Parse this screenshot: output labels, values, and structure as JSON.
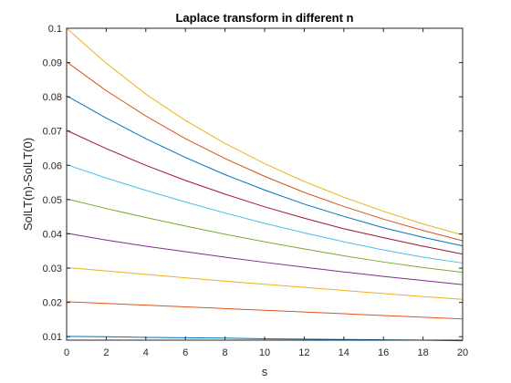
{
  "chart_data": {
    "type": "line",
    "title": "Laplace transform in different n",
    "xlabel": "s",
    "ylabel": "SolLT(n)-SolLT(0)",
    "xlim": [
      0,
      20
    ],
    "ylim": [
      0.009,
      0.1
    ],
    "grid": false,
    "legend": "none",
    "x_ticks": [
      0,
      2,
      4,
      6,
      8,
      10,
      12,
      14,
      16,
      18,
      20
    ],
    "x_tick_labels": [
      "0",
      "2",
      "4",
      "6",
      "8",
      "10",
      "12",
      "14",
      "16",
      "18",
      "20"
    ],
    "y_ticks": [
      0.01,
      0.02,
      0.03,
      0.04,
      0.05,
      0.06,
      0.07,
      0.08,
      0.09,
      0.1
    ],
    "y_tick_labels": [
      "0.01",
      "0.02",
      "0.03",
      "0.04",
      "0.05",
      "0.06",
      "0.07",
      "0.08",
      "0.09",
      "0.1"
    ],
    "x": [
      0,
      2,
      4,
      6,
      8,
      10,
      12,
      14,
      16,
      18,
      20
    ],
    "series": [
      {
        "color": "#0072BD",
        "values": [
          0.0101,
          0.01,
          0.0098,
          0.0097,
          0.0096,
          0.0094,
          0.0093,
          0.0092,
          0.0091,
          0.009,
          0.0088
        ]
      },
      {
        "color": "#D95319",
        "values": [
          0.0202,
          0.0197,
          0.0192,
          0.0187,
          0.0182,
          0.0177,
          0.0172,
          0.0167,
          0.0162,
          0.0157,
          0.0152
        ]
      },
      {
        "color": "#EDB120",
        "values": [
          0.0302,
          0.0292,
          0.0282,
          0.0272,
          0.0262,
          0.0253,
          0.0244,
          0.0235,
          0.0226,
          0.0217,
          0.0209
        ]
      },
      {
        "color": "#7E2F8E",
        "values": [
          0.0402,
          0.0382,
          0.0364,
          0.0348,
          0.0332,
          0.0317,
          0.0303,
          0.0289,
          0.0276,
          0.0264,
          0.0252
        ]
      },
      {
        "color": "#77AC30",
        "values": [
          0.0502,
          0.0474,
          0.0448,
          0.0423,
          0.0399,
          0.0377,
          0.0356,
          0.0336,
          0.0318,
          0.0302,
          0.0288
        ]
      },
      {
        "color": "#4DBEEE",
        "values": [
          0.0602,
          0.0563,
          0.0527,
          0.0493,
          0.0461,
          0.0431,
          0.0403,
          0.0377,
          0.0353,
          0.0332,
          0.0315
        ]
      },
      {
        "color": "#A2142F",
        "values": [
          0.0702,
          0.0649,
          0.06,
          0.0556,
          0.0516,
          0.0479,
          0.0446,
          0.0415,
          0.0389,
          0.0364,
          0.0341
        ]
      },
      {
        "color": "#0072BD",
        "values": [
          0.0803,
          0.0738,
          0.0678,
          0.0623,
          0.0573,
          0.0528,
          0.0487,
          0.0451,
          0.0418,
          0.039,
          0.0365
        ]
      },
      {
        "color": "#D95319",
        "values": [
          0.0902,
          0.0818,
          0.0744,
          0.0678,
          0.062,
          0.0568,
          0.0521,
          0.048,
          0.0443,
          0.041,
          0.038
        ]
      },
      {
        "color": "#EDB120",
        "values": [
          0.1,
          0.0898,
          0.0808,
          0.0731,
          0.0664,
          0.0605,
          0.0553,
          0.0507,
          0.0466,
          0.0429,
          0.0397
        ]
      }
    ]
  }
}
